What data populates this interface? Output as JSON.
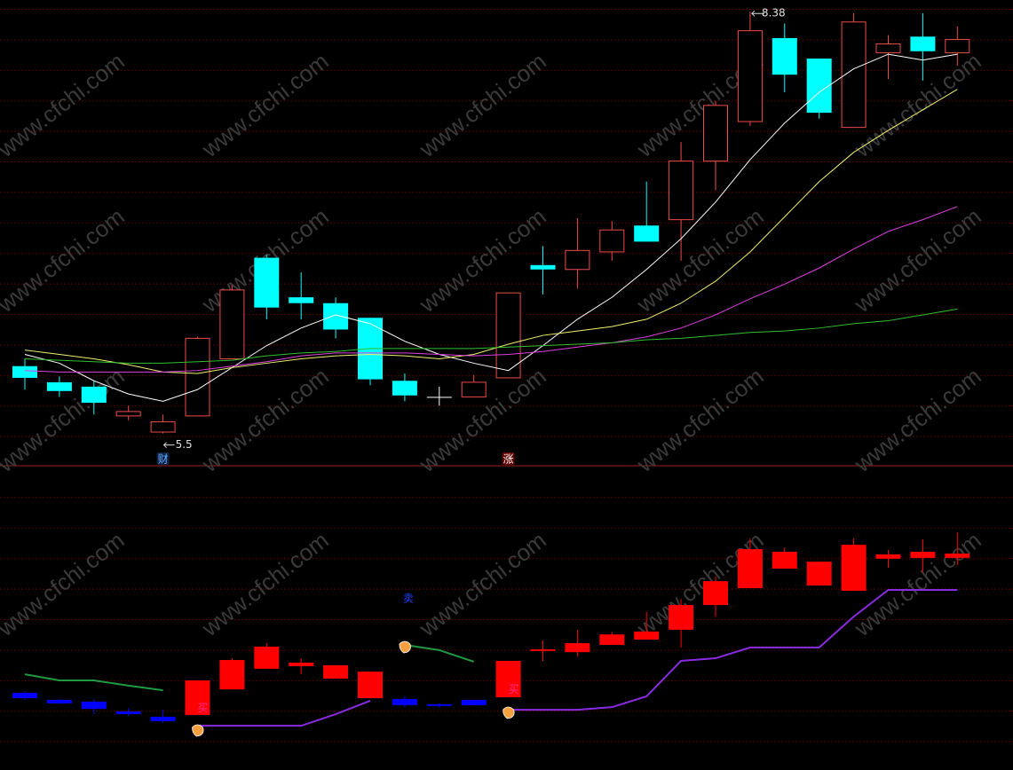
{
  "chart_data": [
    {
      "type": "candlestick",
      "ylim": [
        5.28,
        8.46
      ],
      "up_color": "#f04a4a",
      "down_color": "#00ffff",
      "flat_color": "#ffffff",
      "up_filled": false,
      "candles": [
        {
          "open": 5.96,
          "close": 5.88,
          "high": 6.01,
          "low": 5.8
        },
        {
          "open": 5.85,
          "close": 5.79,
          "high": 5.89,
          "low": 5.75
        },
        {
          "open": 5.82,
          "close": 5.71,
          "high": 5.86,
          "low": 5.63
        },
        {
          "open": 5.62,
          "close": 5.65,
          "high": 5.69,
          "low": 5.59
        },
        {
          "open": 5.51,
          "close": 5.58,
          "high": 5.63,
          "low": 5.5
        },
        {
          "open": 5.62,
          "close": 6.15,
          "high": 6.16,
          "low": 5.62
        },
        {
          "open": 6.01,
          "close": 6.48,
          "high": 6.51,
          "low": 6.01
        },
        {
          "open": 6.7,
          "close": 6.36,
          "high": 6.72,
          "low": 6.28
        },
        {
          "open": 6.43,
          "close": 6.39,
          "high": 6.6,
          "low": 6.28
        },
        {
          "open": 6.39,
          "close": 6.21,
          "high": 6.43,
          "low": 6.15
        },
        {
          "open": 6.29,
          "close": 5.87,
          "high": 6.29,
          "low": 5.83
        },
        {
          "open": 5.86,
          "close": 5.76,
          "high": 5.91,
          "low": 5.72
        },
        {
          "open": 5.75,
          "close": 5.75,
          "high": 5.82,
          "low": 5.69
        },
        {
          "open": 5.75,
          "close": 5.85,
          "high": 5.9,
          "low": 5.75
        },
        {
          "open": 5.88,
          "close": 6.46,
          "high": 6.46,
          "low": 5.88
        },
        {
          "open": 6.65,
          "close": 6.62,
          "high": 6.78,
          "low": 6.45
        },
        {
          "open": 6.62,
          "close": 6.75,
          "high": 6.97,
          "low": 6.49
        },
        {
          "open": 6.74,
          "close": 6.89,
          "high": 6.95,
          "low": 6.68
        },
        {
          "open": 6.92,
          "close": 6.81,
          "high": 7.22,
          "low": 6.81
        },
        {
          "open": 6.96,
          "close": 7.36,
          "high": 7.49,
          "low": 6.68
        },
        {
          "open": 7.36,
          "close": 7.74,
          "high": 7.77,
          "low": 7.16
        },
        {
          "open": 7.63,
          "close": 8.25,
          "high": 8.38,
          "low": 7.6
        },
        {
          "open": 8.2,
          "close": 7.95,
          "high": 8.3,
          "low": 7.83
        },
        {
          "open": 8.06,
          "close": 7.69,
          "high": 8.06,
          "low": 7.65
        },
        {
          "open": 7.59,
          "close": 8.31,
          "high": 8.37,
          "low": 7.59
        },
        {
          "open": 8.1,
          "close": 8.16,
          "high": 8.22,
          "low": 7.92
        },
        {
          "open": 8.21,
          "close": 8.11,
          "high": 8.37,
          "low": 7.91
        },
        {
          "open": 8.1,
          "close": 8.19,
          "high": 8.28,
          "low": 8.01
        }
      ],
      "lines": [
        {
          "color": "#ffffff",
          "values": [
            6.04,
            5.98,
            5.86,
            5.77,
            5.72,
            5.8,
            5.95,
            6.1,
            6.22,
            6.31,
            6.25,
            6.13,
            6.04,
            5.98,
            5.93,
            6.1,
            6.28,
            6.43,
            6.62,
            6.83,
            7.08,
            7.37,
            7.62,
            7.83,
            7.99,
            8.09,
            8.05,
            8.09
          ]
        },
        {
          "color": "#f0f070",
          "values": [
            6.07,
            6.04,
            6.01,
            5.97,
            5.92,
            5.91,
            5.95,
            5.98,
            6.01,
            6.03,
            6.04,
            6.03,
            6.01,
            6.04,
            6.11,
            6.17,
            6.2,
            6.23,
            6.28,
            6.39,
            6.54,
            6.74,
            6.98,
            7.22,
            7.42,
            7.57,
            7.71,
            7.85
          ]
        },
        {
          "color": "#e040e0",
          "values": [
            5.93,
            5.92,
            5.92,
            5.92,
            5.92,
            5.93,
            5.96,
            5.99,
            6.03,
            6.05,
            6.05,
            6.05,
            6.04,
            6.03,
            6.04,
            6.06,
            6.09,
            6.12,
            6.16,
            6.22,
            6.31,
            6.42,
            6.52,
            6.63,
            6.76,
            6.88,
            6.96,
            7.05
          ]
        },
        {
          "color": "#30c030",
          "values": [
            6.01,
            6.0,
            5.99,
            5.98,
            5.98,
            5.99,
            6.0,
            6.03,
            6.05,
            6.06,
            6.08,
            6.08,
            6.08,
            6.08,
            6.09,
            6.1,
            6.11,
            6.12,
            6.14,
            6.15,
            6.17,
            6.19,
            6.2,
            6.22,
            6.25,
            6.27,
            6.31,
            6.35
          ]
        }
      ],
      "markers": [
        null,
        null,
        null,
        null,
        {
          "label": "财",
          "color": "#60b0ff"
        },
        null,
        null,
        null,
        null,
        null,
        null,
        null,
        null,
        null,
        {
          "label": "涨",
          "color": "#ffffff"
        },
        null,
        null,
        null,
        null,
        null,
        null,
        null,
        null,
        null,
        null,
        null,
        null,
        null
      ],
      "watermark": "www.cfchi.com"
    },
    {
      "type": "candlestick",
      "ylim": [
        0,
        100
      ],
      "up_color": "#ff0000",
      "down_color": "#0000ff",
      "flat_color": "#0000ff",
      "up_filled": true,
      "candles": [
        {
          "open": 26.5,
          "close": 24.7,
          "high": 27.1,
          "low": 24.1
        },
        {
          "open": 24.1,
          "close": 22.9,
          "high": 24.4,
          "low": 22.6
        },
        {
          "open": 23.5,
          "close": 21.0,
          "high": 24.4,
          "low": 19.2
        },
        {
          "open": 20.1,
          "close": 19.2,
          "high": 21.3,
          "low": 18.6
        },
        {
          "open": 18.3,
          "close": 16.8,
          "high": 20.7,
          "low": 16.2
        },
        {
          "open": 18.9,
          "close": 30.8,
          "high": 30.8,
          "low": 18.9
        },
        {
          "open": 27.7,
          "close": 37.8,
          "high": 38.4,
          "low": 27.7
        },
        {
          "open": 34.8,
          "close": 42.4,
          "high": 43.6,
          "low": 34.8
        },
        {
          "open": 35.7,
          "close": 36.9,
          "high": 38.4,
          "low": 32.9
        },
        {
          "open": 31.4,
          "close": 36.0,
          "high": 36.0,
          "low": 31.4
        },
        {
          "open": 24.7,
          "close": 33.8,
          "high": 33.8,
          "low": 24.7
        },
        {
          "open": 24.4,
          "close": 22.3,
          "high": 25.3,
          "low": 21.6
        },
        {
          "open": 22.6,
          "close": 22.0,
          "high": 22.9,
          "low": 21.6
        },
        {
          "open": 24.1,
          "close": 22.3,
          "high": 24.1,
          "low": 22.3
        },
        {
          "open": 25.0,
          "close": 37.5,
          "high": 37.5,
          "low": 25.0
        },
        {
          "open": 40.9,
          "close": 41.5,
          "high": 44.5,
          "low": 37.5
        },
        {
          "open": 40.5,
          "close": 43.6,
          "high": 48.2,
          "low": 39.0
        },
        {
          "open": 43.0,
          "close": 46.6,
          "high": 47.3,
          "low": 43.0
        },
        {
          "open": 44.8,
          "close": 47.6,
          "high": 54.3,
          "low": 44.8
        },
        {
          "open": 48.2,
          "close": 56.7,
          "high": 58.8,
          "low": 42.1
        },
        {
          "open": 56.7,
          "close": 64.9,
          "high": 66.5,
          "low": 52.7
        },
        {
          "open": 62.5,
          "close": 75.9,
          "high": 79.6,
          "low": 62.5
        },
        {
          "open": 69.2,
          "close": 75.0,
          "high": 76.5,
          "low": 69.2
        },
        {
          "open": 63.4,
          "close": 71.6,
          "high": 71.6,
          "low": 63.4
        },
        {
          "open": 61.6,
          "close": 77.4,
          "high": 79.6,
          "low": 61.6
        },
        {
          "open": 72.6,
          "close": 74.1,
          "high": 75.6,
          "low": 69.5
        },
        {
          "open": 72.9,
          "close": 75.0,
          "high": 79.3,
          "low": 68.0
        },
        {
          "open": 72.9,
          "close": 74.4,
          "high": 81.7,
          "low": 70.4
        }
      ],
      "lines": [
        {
          "color": "#209a40",
          "values": [
            32.9,
            30.8,
            30.8,
            29.0,
            27.4,
            null,
            null,
            null,
            null,
            null,
            null,
            43.0,
            41.2,
            37.2,
            null,
            null,
            null,
            null,
            null,
            null,
            null,
            null,
            null,
            null,
            null,
            null,
            null,
            null
          ]
        },
        {
          "color": "#8a2be2",
          "values": [
            null,
            null,
            null,
            null,
            null,
            15.2,
            15.2,
            15.2,
            15.2,
            19.2,
            23.8,
            null,
            null,
            null,
            20.7,
            20.7,
            20.7,
            21.6,
            25.3,
            37.5,
            38.4,
            42.1,
            42.1,
            42.1,
            52.7,
            61.9,
            61.9,
            61.9
          ]
        }
      ],
      "signals": [
        null,
        null,
        null,
        null,
        null,
        {
          "label": "买",
          "color": "#ff3090"
        },
        null,
        null,
        null,
        null,
        null,
        {
          "label": "卖",
          "color": "#2040ff"
        },
        null,
        null,
        {
          "label": "买",
          "color": "#ff3090"
        },
        null,
        null,
        null,
        null,
        null,
        null,
        null,
        null,
        null,
        null,
        null,
        null,
        null
      ]
    }
  ]
}
